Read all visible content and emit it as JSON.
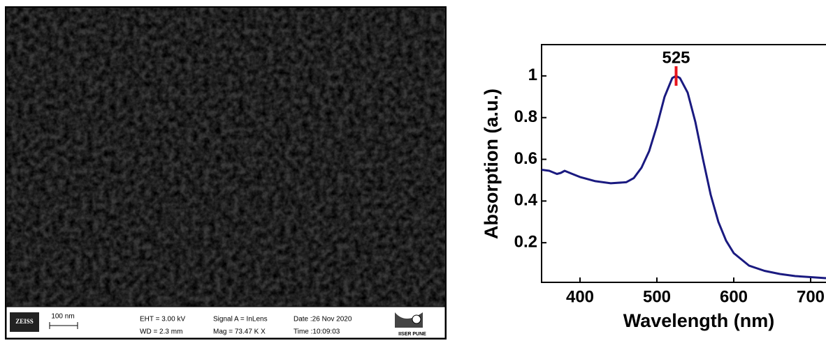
{
  "sem_image": {
    "brand": "ZEISS",
    "scale_bar": "100 nm",
    "eht": "EHT = 3.00 kV",
    "wd": "WD = 2.3 mm",
    "signal": "Signal A = InLens",
    "mag": "Mag = 73.47 K X",
    "date": "Date :26 Nov 2020",
    "time": "Time :10:09:03",
    "institute": "IISER PUNE"
  },
  "chart_data": {
    "type": "line",
    "x_label": "Wavelength (nm)",
    "y_label": "Absorption (a.u.)",
    "peak": 525,
    "x": [
      350,
      360,
      370,
      375,
      380,
      390,
      400,
      420,
      440,
      460,
      470,
      480,
      490,
      500,
      510,
      520,
      525,
      530,
      540,
      550,
      560,
      570,
      580,
      590,
      600,
      620,
      640,
      660,
      680,
      700,
      720
    ],
    "series": [
      {
        "color": "#1a1a80",
        "values": [
          0.55,
          0.545,
          0.53,
          0.535,
          0.545,
          0.53,
          0.515,
          0.495,
          0.485,
          0.49,
          0.51,
          0.56,
          0.64,
          0.76,
          0.9,
          0.99,
          1.0,
          0.99,
          0.92,
          0.78,
          0.6,
          0.43,
          0.3,
          0.21,
          0.15,
          0.09,
          0.065,
          0.05,
          0.04,
          0.035,
          0.03
        ]
      }
    ],
    "peak_color": "#e8141c",
    "xlim": [
      350,
      720
    ],
    "ylim": [
      0.01,
      1.15
    ],
    "xticks": [
      400,
      500,
      600,
      700
    ],
    "yticks": [
      0.2,
      0.4,
      0.6,
      0.8,
      1.0
    ]
  }
}
